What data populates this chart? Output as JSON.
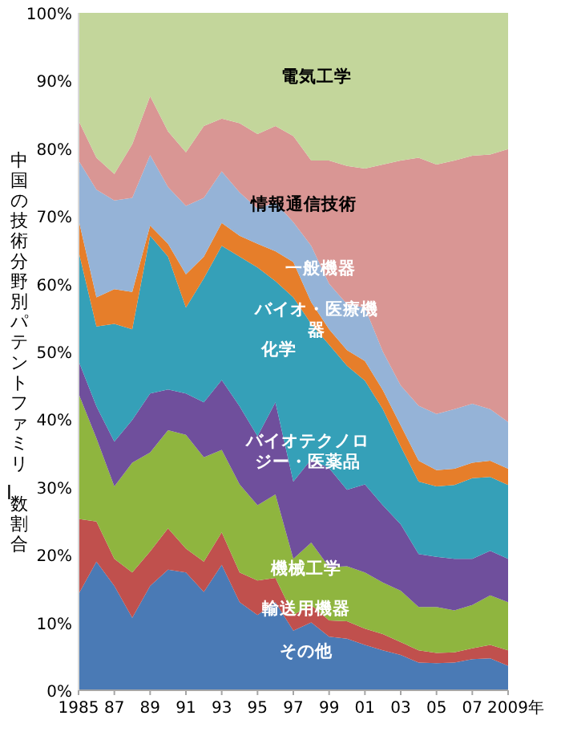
{
  "chart_data": {
    "type": "area",
    "stacked": true,
    "ylabel": "中国の技術分野別パテントファミリー数割合",
    "x": [
      1985,
      1986,
      1987,
      1988,
      1989,
      1990,
      1991,
      1992,
      1993,
      1994,
      1995,
      1996,
      1997,
      1998,
      1999,
      2000,
      2001,
      2002,
      2003,
      2004,
      2005,
      2006,
      2007,
      2008,
      2009
    ],
    "xlim": [
      1985,
      2009
    ],
    "xticks": [
      1985,
      {
        "value": 1987,
        "label": "87"
      },
      {
        "value": 1989,
        "label": "89"
      },
      {
        "value": 1991,
        "label": "91"
      },
      {
        "value": 1993,
        "label": "93"
      },
      {
        "value": 1995,
        "label": "95"
      },
      {
        "value": 1997,
        "label": "97"
      },
      {
        "value": 1999,
        "label": "99"
      },
      {
        "value": 2001,
        "label": "01"
      },
      {
        "value": 2003,
        "label": "03"
      },
      {
        "value": 2005,
        "label": "05"
      },
      {
        "value": 2007,
        "label": "07"
      },
      {
        "value": 2009,
        "label": "2009年"
      }
    ],
    "ylim": [
      0,
      100
    ],
    "yticks": [
      {
        "value": 0,
        "label": "0%"
      },
      {
        "value": 10,
        "label": "10%"
      },
      {
        "value": 20,
        "label": "20%"
      },
      {
        "value": 30,
        "label": "30%"
      },
      {
        "value": 40,
        "label": "40%"
      },
      {
        "value": 50,
        "label": "50%"
      },
      {
        "value": 60,
        "label": "60%"
      },
      {
        "value": 70,
        "label": "70%"
      },
      {
        "value": 80,
        "label": "80%"
      },
      {
        "value": 90,
        "label": "90%"
      },
      {
        "value": 100,
        "label": "100%"
      }
    ],
    "legend": false,
    "series": [
      {
        "name": "その他",
        "color": "#4a7ab5",
        "values": [
          14.2,
          19,
          15.4,
          10.7,
          15.4,
          17.8,
          17.4,
          14.5,
          18.5,
          13,
          11.1,
          13,
          8.8,
          10,
          7.9,
          7.6,
          6.7,
          5.9,
          5.2,
          4.1,
          4,
          4.1,
          4.6,
          4.7,
          3.6
        ]
      },
      {
        "name": "輸送用機器",
        "color": "#c0504d",
        "values": [
          11.1,
          5.9,
          4,
          6.7,
          5.1,
          6.1,
          3.5,
          4.5,
          4.8,
          4.4,
          5.1,
          3.6,
          2.3,
          2.6,
          2.4,
          2.6,
          2.4,
          2.4,
          1.9,
          1.8,
          1.5,
          1.5,
          1.6,
          2,
          2.3
        ]
      },
      {
        "name": "機械工学",
        "color": "#8fb53f",
        "values": [
          18.5,
          12.3,
          10.7,
          16.2,
          14.6,
          14.5,
          16.8,
          15.4,
          12.2,
          13,
          11.1,
          12.3,
          8.3,
          9.2,
          7.9,
          8.1,
          8.3,
          7.6,
          7.6,
          6.4,
          6.8,
          6.2,
          6.4,
          7.3,
          7.1
        ]
      },
      {
        "name": "バイオテクノロジー・医薬品",
        "color": "#6f4f9c",
        "values": [
          4.8,
          4.7,
          6.6,
          6.3,
          8.7,
          6,
          6.1,
          8.1,
          10.3,
          11.5,
          10.2,
          13.6,
          11.4,
          12.3,
          14.6,
          11.3,
          13,
          11.4,
          9.8,
          7.8,
          7.4,
          7.6,
          6.8,
          6.6,
          6.4
        ]
      },
      {
        "name": "化学",
        "color": "#35a0b8",
        "values": [
          16.2,
          11.8,
          17.4,
          13.4,
          23.3,
          19.6,
          12.7,
          18.3,
          19.8,
          22.1,
          24.9,
          17.9,
          27.2,
          20,
          18.2,
          18.3,
          15.3,
          14.2,
          11.5,
          10.7,
          10.4,
          10.9,
          11.9,
          10.9,
          10.9
        ]
      },
      {
        "name": "バイオ・医療機器",
        "color": "#e67e2a",
        "values": [
          4.7,
          4.3,
          5.1,
          5.5,
          1.5,
          1.9,
          4.9,
          3.2,
          3.4,
          3.1,
          3.5,
          4.4,
          5.2,
          3.2,
          2.3,
          2.3,
          2.9,
          2.8,
          3.1,
          3.1,
          2.4,
          2.4,
          2.3,
          2.4,
          2.4
        ]
      },
      {
        "name": "一般機器",
        "color": "#95b3d7",
        "values": [
          8.7,
          15.9,
          13.1,
          13.9,
          10.4,
          8.4,
          10.1,
          8.7,
          7.6,
          6.4,
          5.2,
          7.2,
          5.9,
          8.3,
          6.7,
          6.8,
          7.9,
          5.7,
          5.9,
          8.1,
          8.3,
          8.8,
          8.7,
          7.6,
          6.9
        ]
      },
      {
        "name": "情報通信技術",
        "color": "#d99694",
        "values": [
          5.9,
          4.7,
          3.9,
          7.9,
          8.7,
          8.2,
          7.9,
          10.6,
          7.8,
          10.2,
          11,
          11.3,
          12.7,
          12.6,
          18.2,
          20.4,
          20.5,
          27.6,
          33.2,
          36.6,
          36.8,
          36.7,
          36.6,
          37.6,
          40.3
        ]
      },
      {
        "name": "電気工学",
        "color": "#c3d69b",
        "values": [
          15.9,
          21.4,
          23.8,
          19.4,
          12.3,
          17.5,
          20.6,
          16.7,
          15.6,
          16.3,
          17.9,
          16.7,
          18.2,
          21.8,
          21.8,
          22.6,
          23,
          22.4,
          21.8,
          21.4,
          22.4,
          21.8,
          21.1,
          20.9,
          20.1
        ]
      }
    ]
  }
}
